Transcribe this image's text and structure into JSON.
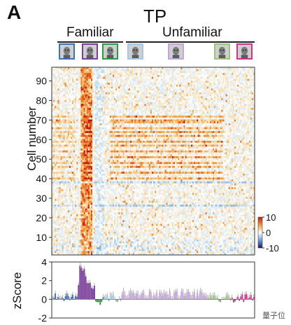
{
  "panel": {
    "letter": "A",
    "title": "TP",
    "groups": [
      {
        "label": "Familiar"
      },
      {
        "label": "Unfamiliar"
      }
    ],
    "stimuli": [
      {
        "group": "Familiar",
        "frame_color": "#3f6fb6",
        "icon": "face-thumbnail"
      },
      {
        "group": "Familiar",
        "frame_color": "#7a3f9a",
        "icon": "face-thumbnail"
      },
      {
        "group": "Familiar",
        "frame_color": "#2e9a48",
        "icon": "face-thumbnail"
      },
      {
        "group": "Unfamiliar",
        "frame_color": "#9fc9e6",
        "icon": "face-thumbnail"
      },
      {
        "group": "Unfamiliar",
        "frame_color": "#c3a6d6",
        "icon": "face-thumbnail"
      },
      {
        "group": "Unfamiliar",
        "frame_color": "#9bc57a",
        "icon": "face-thumbnail"
      },
      {
        "group": "Unfamiliar",
        "frame_color": "#d0338f",
        "icon": "face-thumbnail"
      }
    ],
    "watermark": "量子位"
  },
  "chart_data": [
    {
      "type": "heatmap",
      "ylabel": "Cell number",
      "ylim": [
        1,
        97
      ],
      "yticks": [
        10,
        20,
        30,
        40,
        50,
        60,
        70,
        80,
        90
      ],
      "num_cells": 97,
      "num_bins": 140,
      "colorbar": {
        "ticks": [
          10,
          0,
          -10
        ],
        "tick_labels": [
          "10",
          "0",
          "-10"
        ],
        "range": [
          -10,
          10
        ],
        "colors": [
          "#1a1566",
          "#4b7fc0",
          "#ffffff",
          "#f4b24a",
          "#c01515"
        ]
      },
      "note": "synthetic reconstruction: sparse warm responses, strong vertical band at familiar stimulus 2, dense rows ~40-72 in unfamiliar block"
    },
    {
      "type": "bar",
      "ylabel": "zScore",
      "ylim": [
        -2,
        4
      ],
      "yticks": [
        4,
        2,
        0,
        -2
      ],
      "segments": [
        {
          "stimulus": 1,
          "color": "#3f6fb6",
          "mean": 0.2
        },
        {
          "stimulus": 2,
          "color": "#7a3f9a",
          "mean": 1.5,
          "peak": 3.6
        },
        {
          "stimulus": 3,
          "color": "#2e9a48",
          "mean": -0.2
        },
        {
          "stimulus": 4,
          "color": "#9fc9e6",
          "mean": 0.1
        },
        {
          "stimulus": 5,
          "color": "#c3a6d6",
          "mean": 0.5
        },
        {
          "stimulus": 6,
          "color": "#9bc57a",
          "mean": 0.0
        },
        {
          "stimulus": 7,
          "color": "#d0338f",
          "mean": 0.1
        }
      ]
    }
  ]
}
